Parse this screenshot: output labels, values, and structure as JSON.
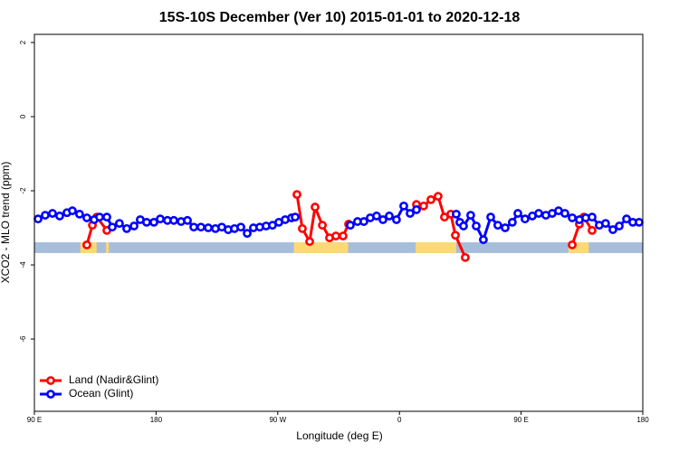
{
  "chart_data": {
    "type": "line",
    "title": "15S-10S December (Ver 10)   2015-01-01 to 2020-12-18",
    "x_label": "Longitude (deg E)",
    "y_label": "XCO2 - MLO trend (ppm)",
    "xlim": [
      90,
      540
    ],
    "xticks": [
      {
        "value": 90,
        "label": "90 E"
      },
      {
        "value": 180,
        "label": "180"
      },
      {
        "value": 270,
        "label": "90 W"
      },
      {
        "value": 360,
        "label": "0"
      },
      {
        "value": 450,
        "label": "90 E"
      },
      {
        "value": 540,
        "label": "180"
      }
    ],
    "ylim": [
      -7.95,
      2.22
    ],
    "yticks": [
      2,
      0,
      -2,
      -4,
      -6
    ],
    "legend_position": "bottomleft",
    "surface_band": {
      "ylim": [
        -3.39,
        -3.68
      ],
      "ocean_color": "#a7bedb",
      "land_color": "#fdd976",
      "land_segments": [
        [
          124,
          136
        ],
        [
          143,
          145
        ],
        [
          282,
          322
        ],
        [
          372,
          402
        ],
        [
          485,
          500
        ]
      ]
    },
    "series": [
      {
        "name": "Land (Nadir&Glint)",
        "color": "#ff0000",
        "x": [
          128.8,
          132.9,
          136.2,
          143.6,
          210,
          284.2,
          288.2,
          293.6,
          297.6,
          303.0,
          308.3,
          313.0,
          318.3,
          322.4,
          350,
          372.6,
          377.9,
          383.3,
          388.6,
          393.3,
          398.0,
          401.4,
          408.7,
          450,
          487.8,
          493.1,
          496.4,
          502.5
        ],
        "values": [
          -3.46,
          -2.93,
          -2.71,
          -3.07,
          null,
          -2.1,
          -3.02,
          -3.37,
          -2.44,
          -2.93,
          -3.27,
          -3.22,
          -3.22,
          -2.9,
          null,
          -2.37,
          -2.41,
          -2.24,
          -2.15,
          -2.71,
          -2.63,
          -3.2,
          -3.8,
          null,
          -3.46,
          -2.9,
          -2.71,
          -3.07
        ]
      },
      {
        "name": "Ocean (Glint)",
        "color": "#0000ff",
        "x": [
          92.7,
          98.0,
          103.4,
          108.7,
          114.1,
          118.1,
          123.4,
          128.8,
          134.2,
          138.2,
          143.6,
          147.6,
          152.9,
          158.3,
          163.7,
          168.3,
          173.0,
          178.4,
          183.1,
          188.4,
          193.1,
          198.5,
          203.2,
          207.9,
          213.2,
          218.6,
          223.9,
          228.6,
          233.3,
          238.0,
          242.7,
          247.4,
          252.0,
          256.7,
          261.4,
          266.1,
          270.8,
          275.5,
          280.2,
          282.9,
          310,
          323.7,
          329.0,
          333.7,
          338.4,
          343.1,
          347.8,
          352.5,
          357.8,
          363.2,
          367.9,
          372.6,
          385,
          402.0,
          404.7,
          407.4,
          412.7,
          416.8,
          422.1,
          427.5,
          432.8,
          438.2,
          443.5,
          447.6,
          452.9,
          458.3,
          463.0,
          468.3,
          473.0,
          477.7,
          482.4,
          487.8,
          493.1,
          497.8,
          502.5,
          507.8,
          512.5,
          517.9,
          522.6,
          528.0,
          532.6,
          537.3
        ],
        "values": [
          -2.76,
          -2.66,
          -2.61,
          -2.68,
          -2.59,
          -2.54,
          -2.63,
          -2.73,
          -2.78,
          -2.71,
          -2.71,
          -2.98,
          -2.88,
          -3.02,
          -2.95,
          -2.78,
          -2.85,
          -2.85,
          -2.76,
          -2.8,
          -2.8,
          -2.83,
          -2.8,
          -2.98,
          -2.98,
          -3.0,
          -3.02,
          -2.98,
          -3.05,
          -3.02,
          -2.98,
          -3.15,
          -3.0,
          -2.98,
          -2.95,
          -2.93,
          -2.85,
          -2.78,
          -2.73,
          -2.71,
          null,
          -2.93,
          -2.83,
          -2.83,
          -2.73,
          -2.68,
          -2.78,
          -2.68,
          -2.78,
          -2.41,
          -2.61,
          -2.51,
          null,
          -2.63,
          -2.85,
          -2.95,
          -2.66,
          -2.95,
          -3.32,
          -2.71,
          -2.93,
          -3.0,
          -2.85,
          -2.61,
          -2.76,
          -2.68,
          -2.61,
          -2.66,
          -2.61,
          -2.54,
          -2.61,
          -2.73,
          -2.78,
          -2.73,
          -2.71,
          -2.93,
          -2.88,
          -3.05,
          -2.95,
          -2.76,
          -2.85,
          -2.85
        ]
      }
    ]
  }
}
